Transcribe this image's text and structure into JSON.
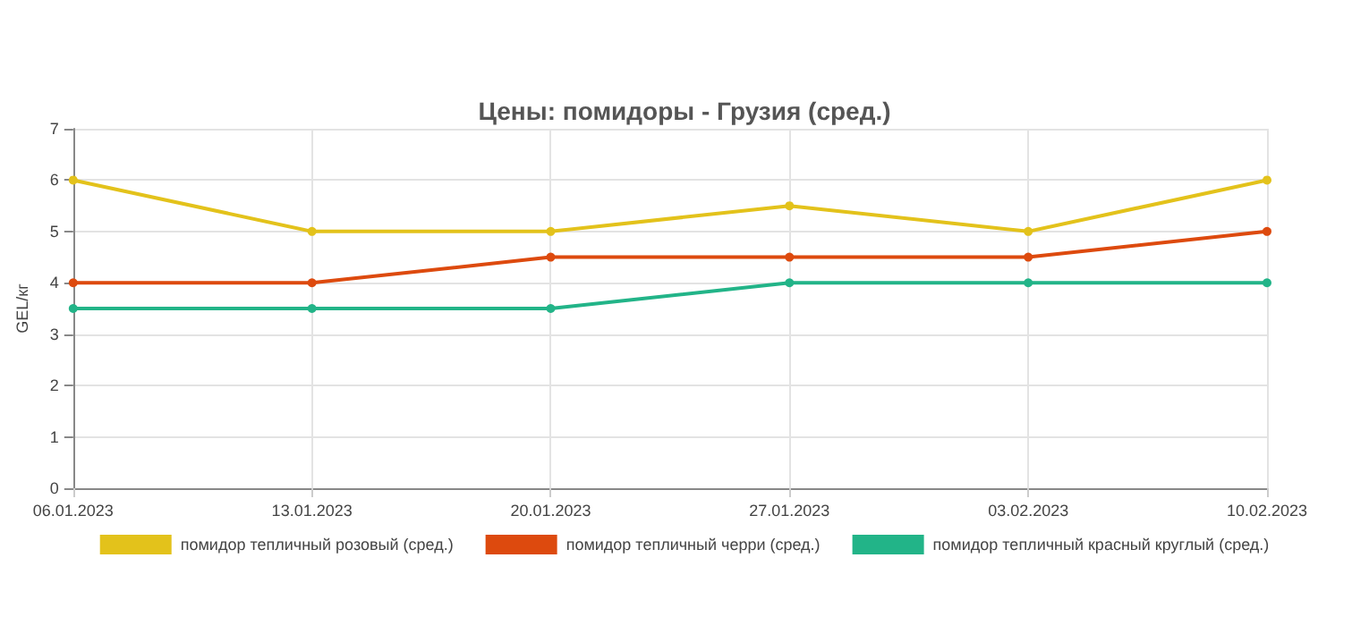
{
  "chart_data": {
    "type": "line",
    "title": "Цены: помидоры - Грузия (сред.)",
    "ylabel": "GEL/кг",
    "categories": [
      "06.01.2023",
      "13.01.2023",
      "20.01.2023",
      "27.01.2023",
      "03.02.2023",
      "10.02.2023"
    ],
    "series": [
      {
        "name": "помидор тепличный розовый (сред.)",
        "color": "#e3c21b",
        "values": [
          6,
          5,
          5,
          5.5,
          5,
          6
        ]
      },
      {
        "name": "помидор тепличный черри (сред.)",
        "color": "#dd4a0e",
        "values": [
          4,
          4,
          4.5,
          4.5,
          4.5,
          5
        ]
      },
      {
        "name": "помидор тепличный красный круглый (сред.)",
        "color": "#22b488",
        "values": [
          3.5,
          3.5,
          3.5,
          4,
          4,
          4
        ]
      }
    ],
    "ylim": [
      0,
      7
    ],
    "yticks": [
      0,
      1,
      2,
      3,
      4,
      5,
      6,
      7
    ],
    "grid": true,
    "legend": "bottom",
    "marker": "circle",
    "line_style": "solid"
  }
}
